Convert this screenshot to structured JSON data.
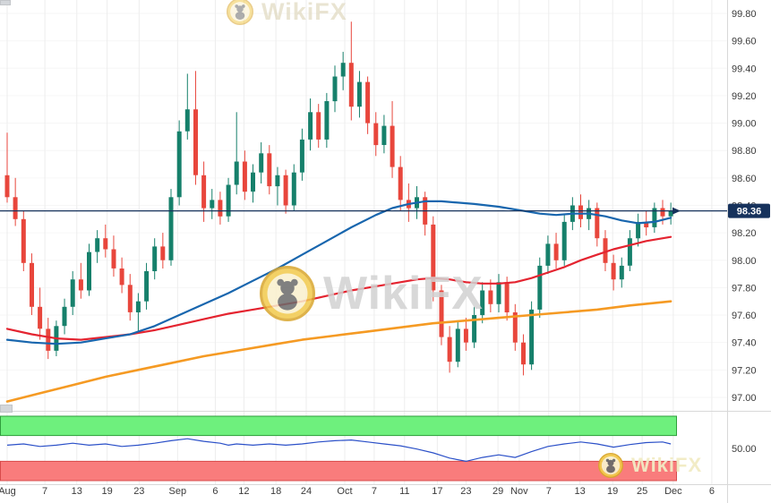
{
  "watermarks": {
    "text": "WikiFX"
  },
  "chart_data": {
    "type": "candlestick",
    "last_price": {
      "label": "98.36",
      "value": 98.36,
      "tag_bg": "#16325c",
      "tag_text": "#ffffff"
    },
    "y_axis": {
      "labels": [
        "99.80",
        "99.60",
        "99.40",
        "99.20",
        "99.00",
        "98.80",
        "98.60",
        "98.40",
        "98.20",
        "98.00",
        "97.80",
        "97.60",
        "97.40",
        "97.20",
        "97.00"
      ]
    },
    "x_axis": {
      "labels": [
        {
          "text": "Aug",
          "i": 0
        },
        {
          "text": "7",
          "i": 4.6
        },
        {
          "text": "13",
          "i": 8.5
        },
        {
          "text": "19",
          "i": 12.2
        },
        {
          "text": "23",
          "i": 16.1
        },
        {
          "text": "Sep",
          "i": 20.8
        },
        {
          "text": "6",
          "i": 25.4
        },
        {
          "text": "12",
          "i": 28.9
        },
        {
          "text": "18",
          "i": 32.8
        },
        {
          "text": "24",
          "i": 36.5
        },
        {
          "text": "Oct",
          "i": 41.2
        },
        {
          "text": "7",
          "i": 44.8
        },
        {
          "text": "11",
          "i": 48.5
        },
        {
          "text": "17",
          "i": 52.5
        },
        {
          "text": "23",
          "i": 56
        },
        {
          "text": "29",
          "i": 59.9
        },
        {
          "text": "Nov",
          "i": 62.5
        },
        {
          "text": "7",
          "i": 66.1
        },
        {
          "text": "13",
          "i": 69.9
        },
        {
          "text": "19",
          "i": 73.9
        },
        {
          "text": "25",
          "i": 77.5
        },
        {
          "text": "Dec",
          "i": 81.3
        },
        {
          "text": "6",
          "i": 86
        }
      ]
    },
    "colors": {
      "bull": "#16806b",
      "bear": "#e8463c",
      "grid_v": "#ededed",
      "grid_h": "#f6f6f6",
      "separator": "#d8d8d8",
      "axis_text": "#3a3a3a"
    },
    "candles": [
      [
        98.62,
        98.93,
        98.42,
        98.46
      ],
      [
        98.46,
        98.6,
        98.25,
        98.3
      ],
      [
        98.3,
        98.36,
        97.92,
        97.98
      ],
      [
        97.98,
        98.05,
        97.6,
        97.66
      ],
      [
        97.66,
        97.8,
        97.42,
        97.5
      ],
      [
        97.5,
        97.58,
        97.28,
        97.34
      ],
      [
        97.34,
        97.56,
        97.3,
        97.52
      ],
      [
        97.52,
        97.72,
        97.46,
        97.66
      ],
      [
        97.66,
        97.92,
        97.6,
        97.86
      ],
      [
        97.86,
        97.98,
        97.72,
        97.78
      ],
      [
        97.78,
        98.12,
        97.74,
        98.06
      ],
      [
        98.06,
        98.22,
        97.98,
        98.16
      ],
      [
        98.16,
        98.26,
        98.02,
        98.08
      ],
      [
        98.08,
        98.18,
        97.88,
        97.94
      ],
      [
        97.94,
        98.02,
        97.76,
        97.82
      ],
      [
        97.82,
        97.9,
        97.56,
        97.62
      ],
      [
        97.62,
        97.76,
        97.48,
        97.7
      ],
      [
        97.7,
        97.98,
        97.64,
        97.92
      ],
      [
        97.92,
        98.16,
        97.86,
        98.1
      ],
      [
        98.1,
        98.2,
        97.94,
        98.0
      ],
      [
        98.0,
        98.52,
        97.96,
        98.46
      ],
      [
        98.46,
        99.02,
        98.4,
        98.94
      ],
      [
        98.94,
        99.36,
        98.88,
        99.1
      ],
      [
        99.1,
        99.38,
        98.55,
        98.62
      ],
      [
        98.62,
        98.72,
        98.28,
        98.38
      ],
      [
        98.38,
        98.52,
        98.3,
        98.44
      ],
      [
        98.44,
        98.5,
        98.26,
        98.32
      ],
      [
        98.32,
        98.6,
        98.28,
        98.55
      ],
      [
        98.55,
        99.08,
        98.48,
        98.72
      ],
      [
        98.72,
        98.8,
        98.44,
        98.5
      ],
      [
        98.5,
        98.7,
        98.42,
        98.64
      ],
      [
        98.64,
        98.86,
        98.56,
        98.78
      ],
      [
        98.78,
        98.84,
        98.48,
        98.54
      ],
      [
        98.54,
        98.68,
        98.4,
        98.62
      ],
      [
        98.62,
        98.66,
        98.34,
        98.4
      ],
      [
        98.4,
        98.7,
        98.36,
        98.64
      ],
      [
        98.64,
        98.96,
        98.58,
        98.88
      ],
      [
        98.88,
        99.18,
        98.8,
        99.08
      ],
      [
        99.08,
        99.14,
        98.82,
        98.88
      ],
      [
        98.88,
        99.22,
        98.82,
        99.16
      ],
      [
        99.16,
        99.42,
        99.08,
        99.34
      ],
      [
        99.34,
        99.52,
        99.24,
        99.44
      ],
      [
        99.44,
        99.74,
        99.02,
        99.12
      ],
      [
        99.12,
        99.38,
        99.04,
        99.3
      ],
      [
        99.3,
        99.34,
        98.92,
        99.0
      ],
      [
        99.0,
        99.08,
        98.76,
        98.84
      ],
      [
        98.84,
        99.06,
        98.78,
        98.98
      ],
      [
        98.98,
        99.16,
        98.6,
        98.68
      ],
      [
        98.68,
        98.76,
        98.36,
        98.44
      ],
      [
        98.44,
        98.56,
        98.28,
        98.38
      ],
      [
        98.38,
        98.54,
        98.3,
        98.46
      ],
      [
        98.46,
        98.5,
        98.18,
        98.26
      ],
      [
        98.26,
        98.32,
        97.7,
        97.78
      ],
      [
        97.78,
        97.82,
        97.38,
        97.44
      ],
      [
        97.44,
        97.52,
        97.18,
        97.26
      ],
      [
        97.26,
        97.56,
        97.22,
        97.5
      ],
      [
        97.5,
        97.58,
        97.34,
        97.4
      ],
      [
        97.4,
        97.66,
        97.36,
        97.6
      ],
      [
        97.6,
        97.84,
        97.54,
        97.78
      ],
      [
        97.78,
        97.86,
        97.62,
        97.68
      ],
      [
        97.68,
        97.9,
        97.62,
        97.84
      ],
      [
        97.84,
        97.88,
        97.56,
        97.62
      ],
      [
        97.62,
        97.68,
        97.34,
        97.4
      ],
      [
        97.4,
        97.46,
        97.16,
        97.24
      ],
      [
        97.24,
        97.7,
        97.2,
        97.64
      ],
      [
        97.64,
        98.02,
        97.58,
        97.96
      ],
      [
        97.96,
        98.18,
        97.9,
        98.12
      ],
      [
        98.12,
        98.2,
        97.94,
        98.0
      ],
      [
        98.0,
        98.34,
        97.96,
        98.28
      ],
      [
        98.28,
        98.46,
        98.22,
        98.4
      ],
      [
        98.4,
        98.48,
        98.24,
        98.3
      ],
      [
        98.3,
        98.44,
        98.22,
        98.38
      ],
      [
        98.38,
        98.42,
        98.1,
        98.16
      ],
      [
        98.16,
        98.22,
        97.92,
        97.98
      ],
      [
        97.98,
        98.04,
        97.78,
        97.86
      ],
      [
        97.86,
        98.02,
        97.8,
        97.96
      ],
      [
        97.96,
        98.22,
        97.92,
        98.16
      ],
      [
        98.16,
        98.34,
        98.1,
        98.28
      ],
      [
        98.28,
        98.36,
        98.18,
        98.24
      ],
      [
        98.24,
        98.42,
        98.2,
        98.38
      ],
      [
        98.38,
        98.44,
        98.26,
        98.32
      ],
      [
        98.32,
        98.42,
        98.26,
        98.36
      ]
    ],
    "moving_averages": [
      {
        "name": "orange-ma",
        "color": "#f59a23",
        "width": 2.6,
        "points": [
          [
            0,
            96.97
          ],
          [
            4,
            97.03
          ],
          [
            8,
            97.09
          ],
          [
            12,
            97.15
          ],
          [
            16,
            97.2
          ],
          [
            20,
            97.25
          ],
          [
            24,
            97.3
          ],
          [
            28,
            97.34
          ],
          [
            32,
            97.38
          ],
          [
            36,
            97.42
          ],
          [
            40,
            97.45
          ],
          [
            44,
            97.48
          ],
          [
            48,
            97.51
          ],
          [
            52,
            97.54
          ],
          [
            56,
            97.56
          ],
          [
            60,
            97.58
          ],
          [
            64,
            97.6
          ],
          [
            68,
            97.62
          ],
          [
            72,
            97.64
          ],
          [
            76,
            97.67
          ],
          [
            81,
            97.7
          ]
        ]
      },
      {
        "name": "red-ma",
        "color": "#e42430",
        "width": 2.2,
        "points": [
          [
            0,
            97.5
          ],
          [
            3,
            97.46
          ],
          [
            6,
            97.43
          ],
          [
            9,
            97.42
          ],
          [
            12,
            97.44
          ],
          [
            15,
            97.46
          ],
          [
            18,
            97.49
          ],
          [
            21,
            97.53
          ],
          [
            24,
            97.57
          ],
          [
            27,
            97.61
          ],
          [
            30,
            97.64
          ],
          [
            33,
            97.67
          ],
          [
            36,
            97.7
          ],
          [
            39,
            97.74
          ],
          [
            42,
            97.78
          ],
          [
            45,
            97.81
          ],
          [
            48,
            97.84
          ],
          [
            50,
            97.86
          ],
          [
            52,
            97.87
          ],
          [
            54,
            97.86
          ],
          [
            56,
            97.84
          ],
          [
            58,
            97.83
          ],
          [
            60,
            97.83
          ],
          [
            62,
            97.84
          ],
          [
            64,
            97.87
          ],
          [
            66,
            97.91
          ],
          [
            68,
            97.95
          ],
          [
            70,
            98.0
          ],
          [
            72,
            98.04
          ],
          [
            74,
            98.08
          ],
          [
            76,
            98.11
          ],
          [
            78,
            98.14
          ],
          [
            81,
            98.17
          ]
        ]
      },
      {
        "name": "blue-ma",
        "color": "#1866ae",
        "width": 2.2,
        "points": [
          [
            0,
            97.42
          ],
          [
            3,
            97.4
          ],
          [
            6,
            97.39
          ],
          [
            9,
            97.4
          ],
          [
            12,
            97.43
          ],
          [
            15,
            97.46
          ],
          [
            18,
            97.52
          ],
          [
            21,
            97.6
          ],
          [
            24,
            97.68
          ],
          [
            27,
            97.76
          ],
          [
            30,
            97.85
          ],
          [
            33,
            97.94
          ],
          [
            36,
            98.04
          ],
          [
            39,
            98.14
          ],
          [
            42,
            98.24
          ],
          [
            45,
            98.33
          ],
          [
            47,
            98.38
          ],
          [
            49,
            98.41
          ],
          [
            51,
            98.43
          ],
          [
            53,
            98.43
          ],
          [
            55,
            98.42
          ],
          [
            57,
            98.41
          ],
          [
            60,
            98.39
          ],
          [
            63,
            98.36
          ],
          [
            65,
            98.34
          ],
          [
            67,
            98.33
          ],
          [
            69,
            98.34
          ],
          [
            71,
            98.34
          ],
          [
            73,
            98.32
          ],
          [
            75,
            98.29
          ],
          [
            77,
            98.27
          ],
          [
            79,
            98.28
          ],
          [
            81,
            98.31
          ]
        ]
      }
    ],
    "indicator": {
      "scale_min": 0,
      "scale_max": 100,
      "upper_band": {
        "from": 70,
        "to": 100,
        "fill": "#6ef07d",
        "border": "#2f9e3c"
      },
      "lower_band": {
        "from": 0,
        "to": 30,
        "fill": "#f97c7c",
        "border": "#d84b4b"
      },
      "line_color": "#2b50c8",
      "axis_label": "50.00",
      "axis_value": 50,
      "points": [
        [
          0,
          55
        ],
        [
          2,
          57
        ],
        [
          4,
          53
        ],
        [
          6,
          55
        ],
        [
          8,
          58
        ],
        [
          10,
          55
        ],
        [
          12,
          57
        ],
        [
          14,
          53
        ],
        [
          16,
          55
        ],
        [
          18,
          58
        ],
        [
          20,
          62
        ],
        [
          22,
          65
        ],
        [
          24,
          61
        ],
        [
          26,
          58
        ],
        [
          27,
          55
        ],
        [
          28,
          57
        ],
        [
          30,
          55
        ],
        [
          32,
          57
        ],
        [
          34,
          55
        ],
        [
          36,
          57
        ],
        [
          38,
          60
        ],
        [
          40,
          62
        ],
        [
          42,
          63
        ],
        [
          44,
          60
        ],
        [
          46,
          57
        ],
        [
          48,
          54
        ],
        [
          50,
          49
        ],
        [
          52,
          43
        ],
        [
          54,
          35
        ],
        [
          56,
          30
        ],
        [
          58,
          36
        ],
        [
          60,
          40
        ],
        [
          62,
          36
        ],
        [
          64,
          45
        ],
        [
          66,
          53
        ],
        [
          68,
          57
        ],
        [
          70,
          60
        ],
        [
          72,
          57
        ],
        [
          74,
          52
        ],
        [
          76,
          56
        ],
        [
          78,
          59
        ],
        [
          80,
          60
        ],
        [
          81,
          57
        ]
      ]
    }
  }
}
